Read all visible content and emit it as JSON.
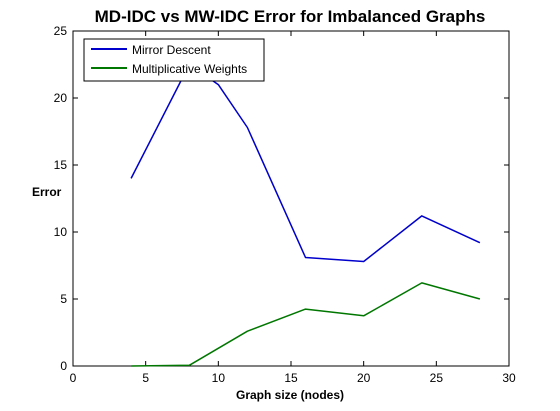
{
  "chart_data": {
    "type": "line",
    "title": "MD-IDC vs MW-IDC Error for Imbalanced Graphs",
    "xlabel": "Graph size (nodes)",
    "ylabel": "Error",
    "xlim": [
      0,
      30
    ],
    "ylim": [
      0,
      25
    ],
    "xticks": [
      0,
      5,
      10,
      15,
      20,
      25,
      30
    ],
    "yticks": [
      0,
      5,
      10,
      15,
      20,
      25
    ],
    "grid": false,
    "legend_position": "top-left",
    "x": [
      4,
      8,
      12,
      16,
      20,
      24,
      28
    ],
    "series": [
      {
        "name": "Mirror Descent",
        "color": "#0000cc",
        "x": [
          4,
          8,
          10,
          12,
          16,
          20,
          24,
          28
        ],
        "values": [
          14.0,
          22.5,
          21.0,
          17.8,
          8.1,
          7.8,
          11.2,
          9.2
        ]
      },
      {
        "name": "Multiplicative Weights",
        "color": "#007700",
        "x": [
          4,
          8,
          12,
          16,
          20,
          24,
          28
        ],
        "values": [
          0.0,
          0.05,
          2.6,
          4.25,
          3.75,
          6.2,
          5.0
        ]
      }
    ]
  }
}
